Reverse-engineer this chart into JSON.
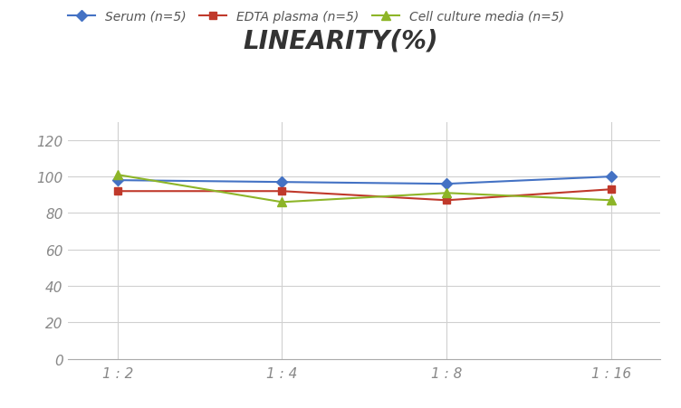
{
  "title": "LINEARITY(%)",
  "x_labels": [
    "1 : 2",
    "1 : 4",
    "1 : 8",
    "1 : 16"
  ],
  "x_positions": [
    0,
    1,
    2,
    3
  ],
  "series": [
    {
      "label": "Serum (n=5)",
      "values": [
        98,
        97,
        96,
        100
      ],
      "color": "#4472C4",
      "marker": "D",
      "marker_size": 6,
      "linewidth": 1.5
    },
    {
      "label": "EDTA plasma (n=5)",
      "values": [
        92,
        92,
        87,
        93
      ],
      "color": "#C0392B",
      "marker": "s",
      "marker_size": 6,
      "linewidth": 1.5
    },
    {
      "label": "Cell culture media (n=5)",
      "values": [
        101,
        86,
        91,
        87
      ],
      "color": "#8DB528",
      "marker": "^",
      "marker_size": 7,
      "linewidth": 1.5
    }
  ],
  "ylim": [
    0,
    130
  ],
  "yticks": [
    0,
    20,
    40,
    60,
    80,
    100,
    120
  ],
  "background_color": "#ffffff",
  "grid_color": "#d0d0d0",
  "title_fontsize": 20,
  "legend_fontsize": 10,
  "tick_fontsize": 11
}
